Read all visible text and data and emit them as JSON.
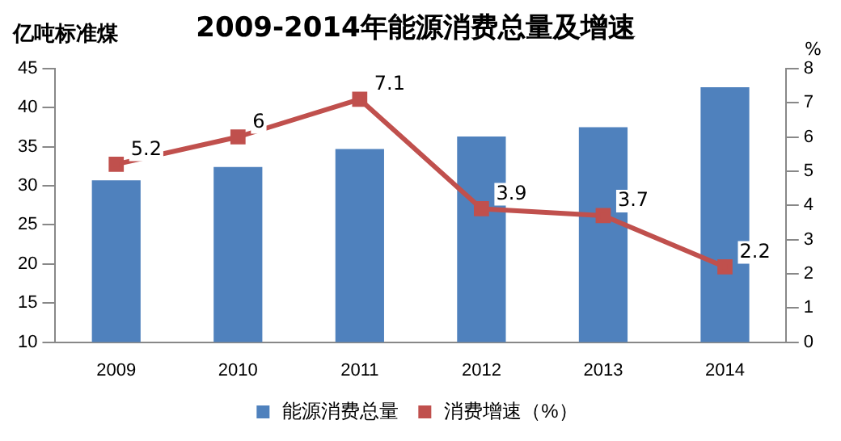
{
  "chart_data": {
    "type": "bar",
    "title": "2009-2014年能源消费总量及增速",
    "ylabel": "亿吨标准煤",
    "y2label": "%",
    "categories": [
      "2009",
      "2010",
      "2011",
      "2012",
      "2013",
      "2014"
    ],
    "series": [
      {
        "name": "能源消费总量",
        "color": "#4f81bd",
        "values": [
          30.7,
          32.4,
          34.7,
          36.3,
          37.5,
          42.6
        ]
      },
      {
        "name": "消费增速（%）",
        "type": "line",
        "axis": "y2",
        "color": "#c0504d",
        "marker": "square",
        "values": [
          5.2,
          6,
          7.1,
          3.9,
          3.7,
          2.2
        ],
        "value_labels": [
          "5.2",
          "6",
          "7.1",
          "3.9",
          "3.7",
          "2.2"
        ]
      }
    ],
    "ylim": [
      10,
      45
    ],
    "yticks": [
      10,
      15,
      20,
      25,
      30,
      35,
      40,
      45
    ],
    "y2lim": [
      0,
      8
    ],
    "y2ticks": [
      0,
      1,
      2,
      3,
      4,
      5,
      6,
      7,
      8
    ],
    "grid": false,
    "legend": "bottom"
  }
}
